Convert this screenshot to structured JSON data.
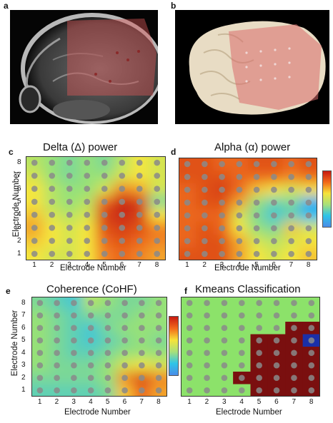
{
  "panels": {
    "a": {
      "letter": "a"
    },
    "b": {
      "letter": "b"
    },
    "c": {
      "letter": "c",
      "title": "Delta (Δ) power",
      "xlabel": "Electrode Number",
      "ylabel": "Electrode Number"
    },
    "d": {
      "letter": "d",
      "title": "Alpha (α)  power",
      "xlabel": "Electrode Number"
    },
    "e": {
      "letter": "e",
      "title": "Coherence (CoHF)",
      "xlabel": "Electrode Number",
      "ylabel": "Electrode Number"
    },
    "f": {
      "letter": "f",
      "title": "Kmeans Classification",
      "xlabel": "Electrode Number"
    }
  },
  "chart_data": [
    {
      "type": "heatmap",
      "panel": "c",
      "title": "Delta (Δ) power",
      "xlabel": "Electrode Number",
      "ylabel": "Electrode Number",
      "x_ticks": [
        "1",
        "2",
        "3",
        "4",
        "5",
        "6",
        "7",
        "8"
      ],
      "y_ticks": [
        "1",
        "2",
        "3",
        "4",
        "5",
        "6",
        "7",
        "8"
      ],
      "values_rows_top_to_bottom": [
        [
          0.5,
          0.45,
          0.4,
          0.45,
          0.4,
          0.5,
          0.6,
          0.55
        ],
        [
          0.55,
          0.45,
          0.4,
          0.45,
          0.45,
          0.55,
          0.6,
          0.55
        ],
        [
          0.6,
          0.5,
          0.45,
          0.45,
          0.55,
          0.75,
          0.7,
          0.55
        ],
        [
          0.6,
          0.5,
          0.45,
          0.5,
          0.8,
          0.95,
          0.9,
          0.4
        ],
        [
          0.65,
          0.55,
          0.5,
          0.55,
          0.9,
          0.95,
          0.9,
          0.6
        ],
        [
          0.7,
          0.6,
          0.55,
          0.6,
          0.85,
          0.9,
          0.85,
          0.75
        ],
        [
          0.65,
          0.6,
          0.55,
          0.6,
          0.8,
          0.85,
          0.8,
          0.75
        ],
        [
          0.6,
          0.55,
          0.55,
          0.6,
          0.75,
          0.8,
          0.75,
          0.7
        ]
      ]
    },
    {
      "type": "heatmap",
      "panel": "d",
      "title": "Alpha (α)  power",
      "xlabel": "Electrode Number",
      "x_ticks": [
        "1",
        "2",
        "3",
        "4",
        "5",
        "6",
        "7",
        "8"
      ],
      "y_ticks": [],
      "values_rows_top_to_bottom": [
        [
          0.85,
          0.85,
          0.8,
          0.8,
          0.85,
          0.85,
          0.8,
          0.85
        ],
        [
          0.85,
          0.85,
          0.85,
          0.8,
          0.8,
          0.8,
          0.75,
          0.8
        ],
        [
          0.8,
          0.85,
          0.9,
          0.8,
          0.65,
          0.6,
          0.55,
          0.6
        ],
        [
          0.8,
          0.85,
          0.85,
          0.7,
          0.45,
          0.35,
          0.4,
          0.2
        ],
        [
          0.8,
          0.8,
          0.8,
          0.55,
          0.4,
          0.3,
          0.35,
          0.25
        ],
        [
          0.8,
          0.85,
          0.8,
          0.6,
          0.45,
          0.4,
          0.65,
          0.55
        ],
        [
          0.8,
          0.85,
          0.85,
          0.7,
          0.55,
          0.5,
          0.55,
          0.6
        ],
        [
          0.85,
          0.85,
          0.85,
          0.7,
          0.6,
          0.55,
          0.6,
          0.65
        ]
      ]
    },
    {
      "type": "heatmap",
      "panel": "e",
      "title": "Coherence (CoHF)",
      "xlabel": "Electrode Number",
      "ylabel": "Electrode Number",
      "x_ticks": [
        "1",
        "2",
        "3",
        "4",
        "5",
        "6",
        "7",
        "8"
      ],
      "y_ticks": [
        "1",
        "2",
        "3",
        "4",
        "5",
        "6",
        "7",
        "8"
      ],
      "values_rows_top_to_bottom": [
        [
          0.4,
          0.35,
          0.3,
          0.5,
          0.45,
          0.4,
          0.4,
          0.45
        ],
        [
          0.45,
          0.4,
          0.35,
          0.4,
          0.4,
          0.4,
          0.45,
          0.45
        ],
        [
          0.45,
          0.4,
          0.35,
          0.3,
          0.4,
          0.45,
          0.45,
          0.45
        ],
        [
          0.45,
          0.4,
          0.35,
          0.3,
          0.35,
          0.4,
          0.45,
          0.4
        ],
        [
          0.45,
          0.4,
          0.35,
          0.35,
          0.4,
          0.45,
          0.45,
          0.45
        ],
        [
          0.45,
          0.4,
          0.4,
          0.4,
          0.45,
          0.55,
          0.6,
          0.55
        ],
        [
          0.4,
          0.4,
          0.4,
          0.4,
          0.45,
          0.75,
          0.9,
          0.75
        ],
        [
          0.35,
          0.35,
          0.35,
          0.35,
          0.4,
          0.65,
          0.8,
          0.7
        ]
      ]
    },
    {
      "type": "heatmap",
      "panel": "f",
      "title": "Kmeans Classification",
      "xlabel": "Electrode Number",
      "x_ticks": [
        "1",
        "2",
        "3",
        "4",
        "5",
        "6",
        "7",
        "8"
      ],
      "y_ticks": [],
      "classes": {
        "0": "#8ce26a",
        "1": "#7a0f0f",
        "2": "#1a2fa8"
      },
      "classes_rows_top_to_bottom": [
        [
          0,
          0,
          0,
          0,
          0,
          0,
          0,
          0
        ],
        [
          0,
          0,
          0,
          0,
          0,
          0,
          0,
          0
        ],
        [
          0,
          0,
          0,
          0,
          0,
          0,
          1,
          1
        ],
        [
          0,
          0,
          0,
          0,
          1,
          1,
          1,
          2
        ],
        [
          0,
          0,
          0,
          0,
          1,
          1,
          1,
          1
        ],
        [
          0,
          0,
          0,
          0,
          1,
          1,
          1,
          1
        ],
        [
          0,
          0,
          0,
          1,
          1,
          1,
          1,
          1
        ],
        [
          0,
          0,
          0,
          0,
          1,
          1,
          1,
          1
        ]
      ]
    }
  ]
}
